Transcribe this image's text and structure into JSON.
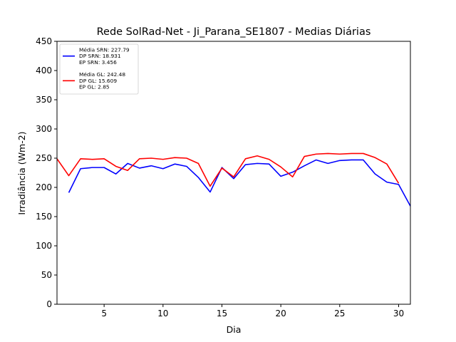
{
  "chart_data": {
    "type": "line",
    "title": "Rede SolRad-Net - Ji_Parana_SE1807 - Medias Diárias",
    "xlabel": "Dia",
    "ylabel": "Irradiância (Wm-2)",
    "xlim": [
      1,
      31
    ],
    "ylim": [
      0,
      450
    ],
    "xticks": [
      5,
      10,
      15,
      20,
      25,
      30
    ],
    "yticks": [
      0,
      50,
      100,
      150,
      200,
      250,
      300,
      350,
      400,
      450
    ],
    "grid": false,
    "legend_position": "top-left",
    "series": [
      {
        "name": "SRN",
        "color": "#0000ff",
        "legend_lines": [
          "Média SRN: 227.79",
          "DP SRN: 18.931",
          "EP SRN: 3.456"
        ],
        "x": [
          2,
          3,
          4,
          5,
          6,
          7,
          8,
          9,
          10,
          11,
          12,
          13,
          14,
          15,
          16,
          17,
          18,
          19,
          20,
          21,
          22,
          23,
          24,
          25,
          26,
          27,
          28,
          29,
          30,
          31
        ],
        "values": [
          191,
          232,
          234,
          234,
          223,
          241,
          233,
          237,
          232,
          240,
          236,
          217,
          192,
          234,
          215,
          239,
          241,
          240,
          219,
          226,
          237,
          247,
          241,
          246,
          247,
          247,
          223,
          209,
          205,
          168
        ]
      },
      {
        "name": "GL",
        "color": "#ff0000",
        "legend_lines": [
          "Média GL: 242.48",
          "DP GL: 15.609",
          "EP GL: 2.85"
        ],
        "x": [
          1,
          2,
          3,
          4,
          5,
          6,
          7,
          8,
          9,
          10,
          11,
          12,
          13,
          14,
          15,
          16,
          17,
          18,
          19,
          20,
          21,
          22,
          23,
          24,
          25,
          26,
          27,
          28,
          29,
          30
        ],
        "values": [
          249,
          220,
          249,
          248,
          249,
          236,
          229,
          249,
          250,
          248,
          251,
          250,
          241,
          202,
          233,
          218,
          249,
          254,
          248,
          235,
          218,
          253,
          257,
          258,
          257,
          258,
          258,
          251,
          240,
          207
        ]
      }
    ]
  }
}
